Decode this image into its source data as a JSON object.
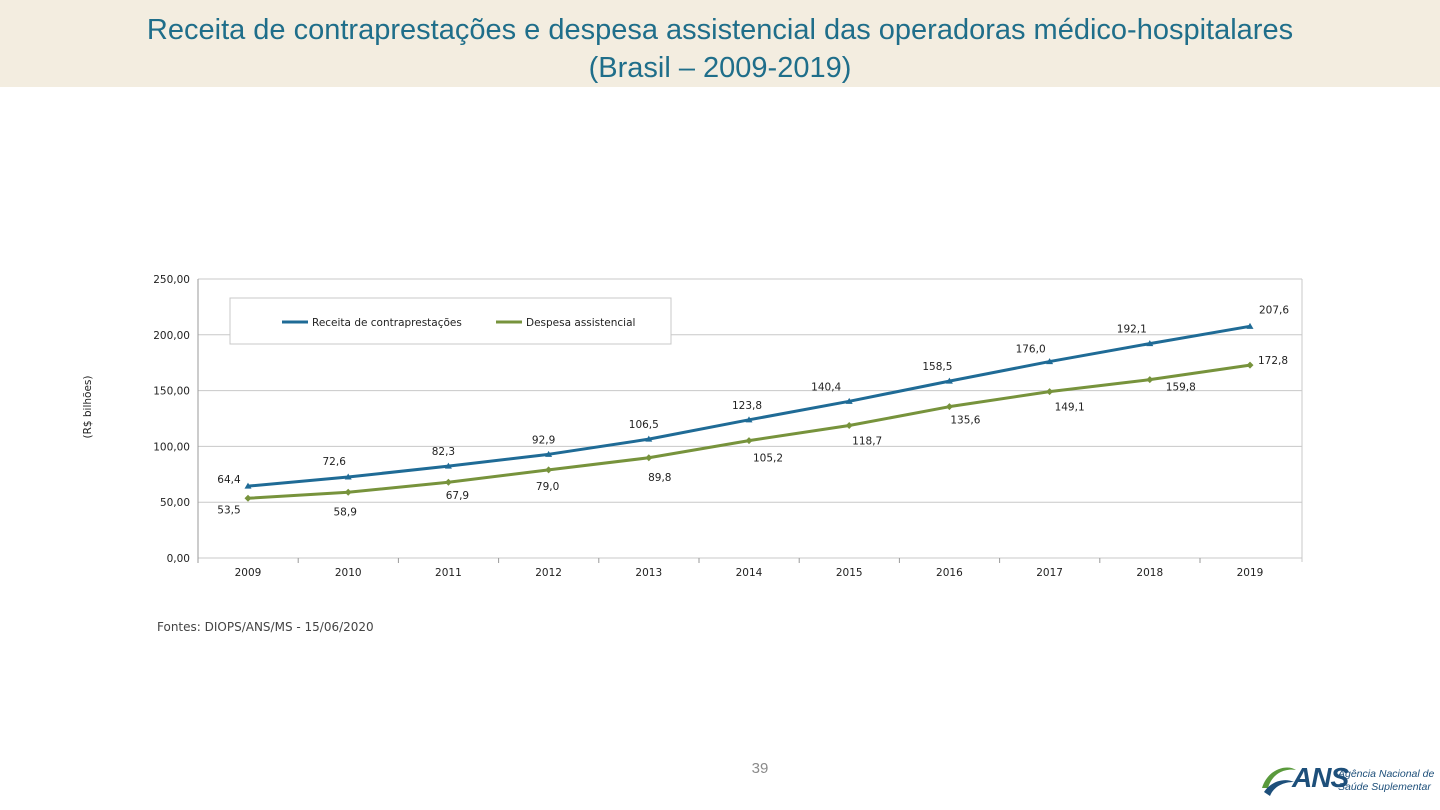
{
  "header": {
    "title_line1": "Receita de contraprestações e despesa assistencial das operadoras médico-hospitalares",
    "title_line2": "(Brasil – 2009-2019)"
  },
  "chart_data": {
    "type": "line",
    "title": "",
    "ylabel": "(R$ bilhões)",
    "xlabel": "",
    "categories": [
      "2009",
      "2010",
      "2011",
      "2012",
      "2013",
      "2014",
      "2015",
      "2016",
      "2017",
      "2018",
      "2019"
    ],
    "ylim": [
      0,
      250
    ],
    "yticks": [
      0,
      50,
      100,
      150,
      200,
      250
    ],
    "ytick_labels": [
      "0,00",
      "50,00",
      "100,00",
      "150,00",
      "200,00",
      "250,00"
    ],
    "grid": true,
    "legend_position": "top-left",
    "series": [
      {
        "name": "Receita de contraprestações",
        "color": "#1f6b96",
        "marker": "triangle",
        "values": [
          64.4,
          72.6,
          82.3,
          92.9,
          106.5,
          123.8,
          140.4,
          158.5,
          176.0,
          192.1,
          207.6
        ],
        "labels": [
          "64,4",
          "72,6",
          "82,3",
          "92,9",
          "106,5",
          "123,8",
          "140,4",
          "158,5",
          "176,0",
          "192,1",
          "207,6"
        ]
      },
      {
        "name": "Despesa assistencial",
        "color": "#77933c",
        "marker": "diamond",
        "values": [
          53.5,
          58.9,
          67.9,
          79.0,
          89.8,
          105.2,
          118.7,
          135.6,
          149.1,
          159.8,
          172.8
        ],
        "labels": [
          "53,5",
          "58,9",
          "67,9",
          "79,0",
          "89,8",
          "105,2",
          "118,7",
          "135,6",
          "149,1",
          "159,8",
          "172,8"
        ]
      }
    ]
  },
  "source_note": "Fontes: DIOPS/ANS/MS - 15/06/2020",
  "page_number": "39",
  "logo": {
    "mark": "ANS",
    "line1": "Agência Nacional de",
    "line2": "Saúde Suplementar",
    "colors": {
      "blue": "#1d4f7a",
      "green": "#5a9a3c"
    }
  }
}
